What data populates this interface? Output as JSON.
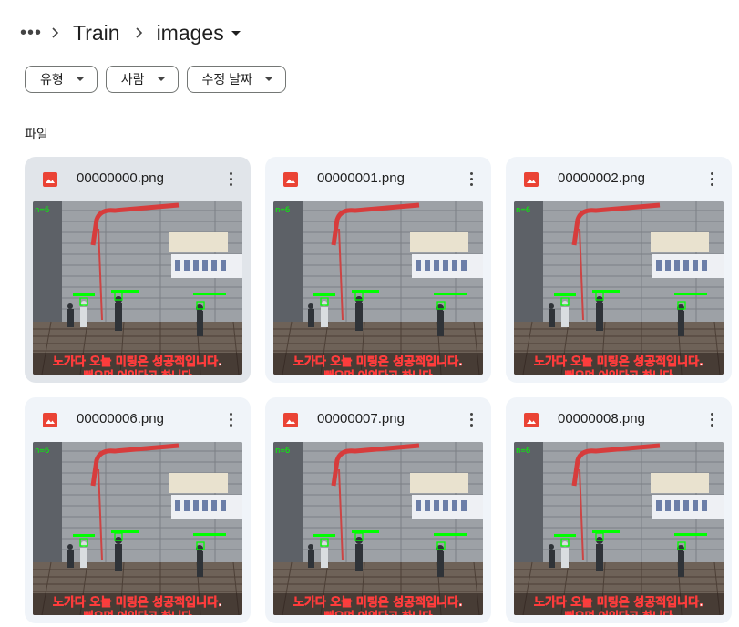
{
  "breadcrumb": {
    "overflow_icon": "more-horiz-icon",
    "items": [
      {
        "label": "Train"
      },
      {
        "label": "images"
      }
    ]
  },
  "filters": [
    {
      "label": "유형"
    },
    {
      "label": "사람"
    },
    {
      "label": "수정 날짜"
    }
  ],
  "section_title": "파일",
  "files": [
    {
      "name": "00000000.png",
      "icon": "image-file-icon",
      "selected": true
    },
    {
      "name": "00000001.png",
      "icon": "image-file-icon",
      "selected": false
    },
    {
      "name": "00000002.png",
      "icon": "image-file-icon",
      "selected": false
    },
    {
      "name": "00000006.png",
      "icon": "image-file-icon",
      "selected": false
    },
    {
      "name": "00000007.png",
      "icon": "image-file-icon",
      "selected": false
    },
    {
      "name": "00000008.png",
      "icon": "image-file-icon",
      "selected": false
    }
  ],
  "thumbnail": {
    "overlay_count": "n=6",
    "subtitle_line1": "노가다 오늘 미팅은 성공적입니다.",
    "subtitle_line2": "뻐오며 어인다고 하니다"
  },
  "colors": {
    "file_icon": "#ea4335",
    "card_bg": "#f0f4f9",
    "card_selected_bg": "#e1e5ea",
    "detection_box": "#00ff00",
    "subtitle_text": "#ff3b3b"
  }
}
